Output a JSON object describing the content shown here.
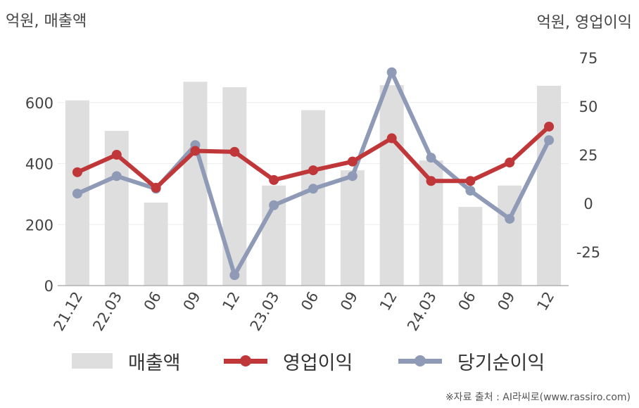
{
  "unit_left": "억원, 매출액",
  "unit_right": "억원, 영업이익",
  "source": "※자료 출처 : AI라씨로(www.rassiro.com)",
  "colors": {
    "bar": "#dedede",
    "operating": "#c0373a",
    "net": "#8f9bb6",
    "axis": "#b0b0b0",
    "grid": "#eeeeee"
  },
  "chart_data": {
    "type": "bar",
    "categories": [
      "21.12",
      "22.03",
      "06",
      "09",
      "12",
      "23.03",
      "06",
      "09",
      "12",
      "24.03",
      "06",
      "09",
      "12"
    ],
    "y_left": {
      "ticks": [
        0,
        200,
        400,
        600
      ],
      "range": [
        0,
        800
      ]
    },
    "y_right": {
      "ticks": [
        75,
        50,
        25,
        0,
        -25
      ],
      "range": [
        -42.5,
        75
      ]
    },
    "series": [
      {
        "name": "매출액",
        "type": "bar",
        "axis": "left",
        "values": [
          607,
          507,
          272,
          668,
          650,
          328,
          575,
          378,
          657,
          410,
          258,
          328,
          655
        ]
      },
      {
        "name": "영업이익",
        "type": "line",
        "axis": "right",
        "values": [
          16,
          25,
          8,
          27,
          26.5,
          12,
          17,
          21.5,
          33.5,
          11.5,
          11.5,
          21,
          39.5
        ]
      },
      {
        "name": "당기순이익",
        "type": "line",
        "axis": "right",
        "values": [
          5,
          14,
          7.5,
          30,
          -37,
          -1,
          7.5,
          14,
          67.5,
          23.5,
          6.5,
          -8,
          32.5
        ]
      }
    ]
  }
}
